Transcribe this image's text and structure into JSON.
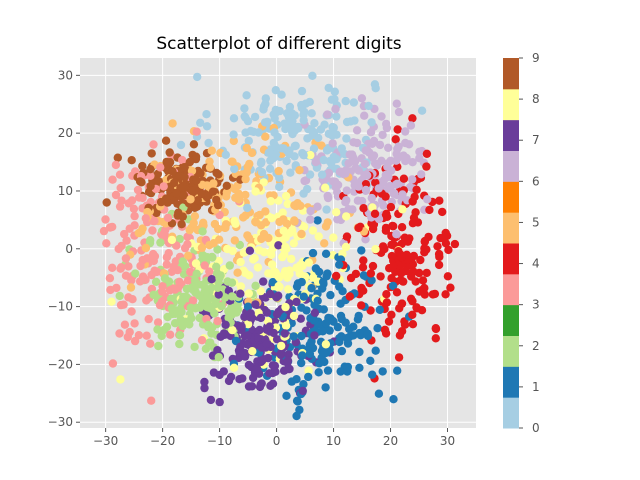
{
  "chart_data": {
    "type": "scatter",
    "title": "Scatterplot of different digits",
    "xlabel": "",
    "ylabel": "",
    "xlim": [
      -34.5,
      35
    ],
    "ylim": [
      -31,
      33
    ],
    "xticks": [
      "−30",
      "−20",
      "−10",
      "0",
      "10",
      "20",
      "30"
    ],
    "xtick_values": [
      -30,
      -20,
      -10,
      0,
      10,
      20,
      30
    ],
    "yticks": [
      "30",
      "20",
      "10",
      "0",
      "−10",
      "−20",
      "−30"
    ],
    "ytick_values": [
      30,
      20,
      10,
      0,
      -10,
      -20,
      -30
    ],
    "grid": true,
    "background": "#e5e5e5",
    "colormap": "Paired",
    "colorbar": {
      "ticks": [
        "0",
        "1",
        "2",
        "3",
        "4",
        "5",
        "6",
        "7",
        "8",
        "9"
      ],
      "colors": [
        "#a6cee3",
        "#1f78b4",
        "#b2df8a",
        "#33a02c",
        "#fb9a99",
        "#e31a1c",
        "#fdbf6f",
        "#ff7f00",
        "#cab2d6",
        "#6a3d9a",
        "#ffff99",
        "#b15928"
      ]
    },
    "series": [
      {
        "label": "0",
        "color": "#a6cee3",
        "count": 180,
        "center": [
          3,
          20
        ],
        "spread": [
          7,
          5
        ]
      },
      {
        "label": "1",
        "color": "#1f78b4",
        "count": 180,
        "center": [
          8,
          -14
        ],
        "spread": [
          6,
          7
        ]
      },
      {
        "label": "2",
        "color": "#b2df8a",
        "count": 180,
        "center": [
          -13,
          -8
        ],
        "spread": [
          5,
          5
        ]
      },
      {
        "label": "3",
        "color": "#fb9a99",
        "count": 180,
        "center": [
          -21,
          0
        ],
        "spread": [
          5,
          8
        ]
      },
      {
        "label": "4",
        "color": "#e31a1c",
        "count": 180,
        "center": [
          22,
          0
        ],
        "spread": [
          5,
          8
        ]
      },
      {
        "label": "5",
        "color": "#fdbf6f",
        "count": 180,
        "center": [
          -8,
          7
        ],
        "spread": [
          8,
          6
        ]
      },
      {
        "label": "6",
        "color": "#cab2d6",
        "count": 180,
        "center": [
          16,
          13
        ],
        "spread": [
          5,
          5
        ]
      },
      {
        "label": "7",
        "color": "#6a3d9a",
        "count": 180,
        "center": [
          -3,
          -16
        ],
        "spread": [
          5,
          5
        ]
      },
      {
        "label": "8",
        "color": "#ffff99",
        "count": 180,
        "center": [
          0,
          -3
        ],
        "spread": [
          7,
          7
        ]
      },
      {
        "label": "9",
        "color": "#b15928",
        "count": 180,
        "center": [
          -17,
          11
        ],
        "spread": [
          4,
          3
        ]
      }
    ]
  }
}
